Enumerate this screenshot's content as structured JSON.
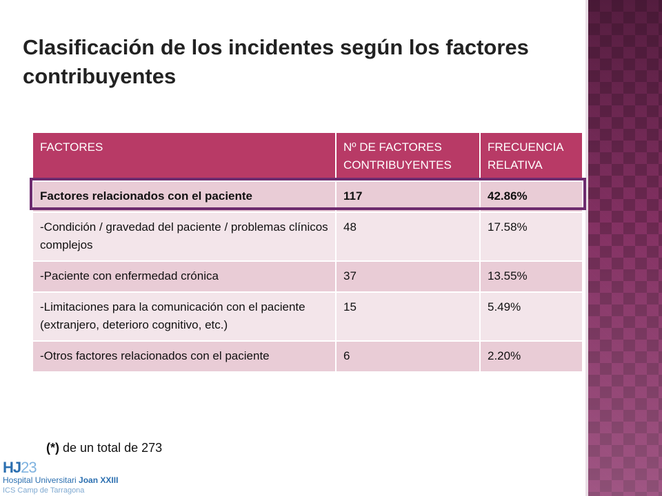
{
  "slide": {
    "title_line1": "Clasificación de los incidentes según los factores",
    "title_line2": "contribuyentes"
  },
  "table": {
    "headers": [
      "FACTORES",
      "Nº DE FACTORES CONTRIBUYENTES",
      "FRECUENCIA RELATIVA"
    ],
    "rows": [
      {
        "factor": "Factores relacionados con el paciente",
        "count": "117",
        "frequency": "42.86%"
      },
      {
        "factor": "-Condición / gravedad del paciente / problemas clínicos complejos",
        "count": "48",
        "frequency": "17.58%"
      },
      {
        "factor": "-Paciente con enfermedad crónica",
        "count": "37",
        "frequency": "13.55%"
      },
      {
        "factor": "-Limitaciones para la comunicación con el paciente (extranjero, deterioro cognitivo, etc.)",
        "count": "15",
        "frequency": "5.49%"
      },
      {
        "factor": "-Otros factores relacionados con el paciente",
        "count": "6",
        "frequency": "2.20%"
      }
    ]
  },
  "footnote": {
    "marker": "(*)",
    "text": "de un total de 273"
  },
  "logo": {
    "mark_letters": "HJ",
    "mark_number": "23",
    "line1_prefix": "Hospital Universitari ",
    "line1_name": "Joan XXIII",
    "line2": "ICS Camp de Tarragona"
  },
  "colors": {
    "header": "#b83a66",
    "row_dark": "#e9ccd6",
    "row_light": "#f3e5ea",
    "highlight_border": "#6d2b6e",
    "sidebar_pattern": "#6e2a52"
  }
}
